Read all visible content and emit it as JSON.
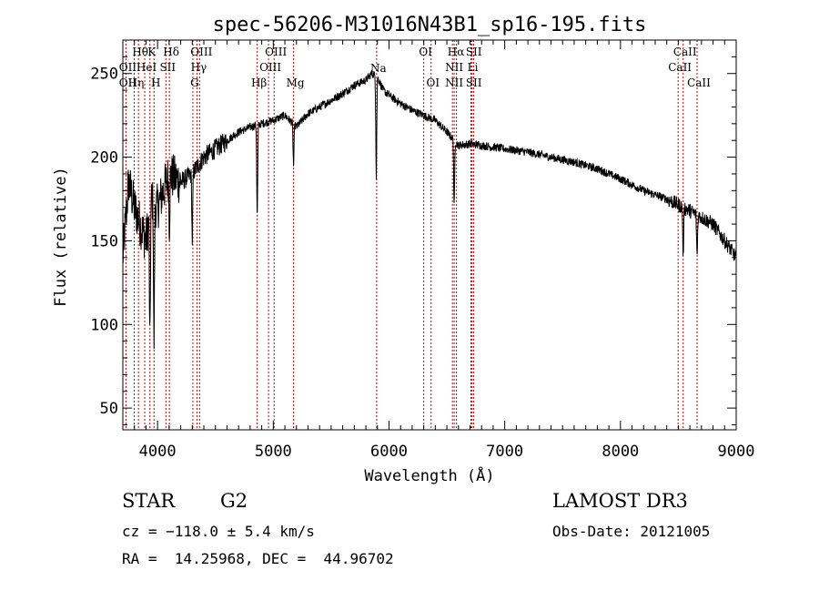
{
  "chart_data": {
    "type": "line",
    "title": "spec-56206-M31016N43B1_sp16-195.fits",
    "xlabel": "Wavelength (Å)",
    "ylabel": "Flux (relative)",
    "xlim": [
      3700,
      9000
    ],
    "ylim": [
      37,
      270
    ],
    "x_ticks": [
      4000,
      5000,
      6000,
      7000,
      8000,
      9000
    ],
    "y_ticks": [
      50,
      100,
      150,
      200,
      250
    ],
    "grid": false,
    "series": [
      {
        "name": "spectrum",
        "continuum_points": [
          [
            3700,
            140
          ],
          [
            3750,
            185
          ],
          [
            3800,
            170
          ],
          [
            3850,
            160
          ],
          [
            3900,
            150
          ],
          [
            3950,
            175
          ],
          [
            4000,
            170
          ],
          [
            4100,
            190
          ],
          [
            4200,
            185
          ],
          [
            4300,
            190
          ],
          [
            4400,
            200
          ],
          [
            4500,
            205
          ],
          [
            4600,
            210
          ],
          [
            4700,
            215
          ],
          [
            4800,
            218
          ],
          [
            4900,
            220
          ],
          [
            5000,
            222
          ],
          [
            5100,
            225
          ],
          [
            5200,
            218
          ],
          [
            5300,
            226
          ],
          [
            5400,
            230
          ],
          [
            5500,
            234
          ],
          [
            5600,
            238
          ],
          [
            5700,
            243
          ],
          [
            5800,
            246
          ],
          [
            5850,
            250
          ],
          [
            5900,
            248
          ],
          [
            5950,
            240
          ],
          [
            6000,
            237
          ],
          [
            6100,
            232
          ],
          [
            6200,
            228
          ],
          [
            6300,
            225
          ],
          [
            6400,
            222
          ],
          [
            6500,
            215
          ],
          [
            6600,
            207
          ],
          [
            6700,
            208
          ],
          [
            6800,
            207
          ],
          [
            7000,
            205
          ],
          [
            7200,
            203
          ],
          [
            7400,
            200
          ],
          [
            7600,
            197
          ],
          [
            7800,
            193
          ],
          [
            8000,
            187
          ],
          [
            8200,
            180
          ],
          [
            8400,
            175
          ],
          [
            8600,
            168
          ],
          [
            8800,
            160
          ],
          [
            9000,
            140
          ]
        ],
        "absorption_features": [
          {
            "wavelength": 3934,
            "depth": 80
          },
          {
            "wavelength": 3969,
            "depth": 85
          },
          {
            "wavelength": 4102,
            "depth": 30
          },
          {
            "wavelength": 4300,
            "depth": 40
          },
          {
            "wavelength": 4861,
            "depth": 55
          },
          {
            "wavelength": 5175,
            "depth": 25
          },
          {
            "wavelength": 5890,
            "depth": 60
          },
          {
            "wavelength": 6563,
            "depth": 40
          },
          {
            "wavelength": 8542,
            "depth": 30
          },
          {
            "wavelength": 8662,
            "depth": 25
          }
        ]
      }
    ],
    "lines": [
      {
        "wl": 3727,
        "top": "OII",
        "bottom": "OII"
      },
      {
        "wl": 3798,
        "top": "",
        "bottom": "Hη"
      },
      {
        "wl": 3835,
        "top": "Hθ",
        "bottom": ""
      },
      {
        "wl": 3889,
        "top": "HeI",
        "bottom": ""
      },
      {
        "wl": 3934,
        "top": "K",
        "bottom": "H"
      },
      {
        "wl": 3969,
        "top": "",
        "bottom": ""
      },
      {
        "wl": 4072,
        "top": "SII",
        "bottom": ""
      },
      {
        "wl": 4102,
        "top": "Hδ",
        "bottom": ""
      },
      {
        "wl": 4305,
        "top": "",
        "bottom": "G"
      },
      {
        "wl": 4340,
        "top": "Hγ",
        "bottom": ""
      },
      {
        "wl": 4363,
        "top": "OIII",
        "bottom": ""
      },
      {
        "wl": 4861,
        "top": "",
        "bottom": "Hβ"
      },
      {
        "wl": 4959,
        "top": "OIII",
        "bottom": ""
      },
      {
        "wl": 5007,
        "top": "OIII",
        "bottom": ""
      },
      {
        "wl": 5175,
        "top": "",
        "bottom": "Mg"
      },
      {
        "wl": 5893,
        "top": "",
        "bottom": "Na"
      },
      {
        "wl": 6300,
        "top": "OI",
        "bottom": ""
      },
      {
        "wl": 6364,
        "top": "",
        "bottom": "OI"
      },
      {
        "wl": 6548,
        "top": "NII",
        "bottom": "NII"
      },
      {
        "wl": 6563,
        "top": "Hα",
        "bottom": ""
      },
      {
        "wl": 6583,
        "top": "",
        "bottom": ""
      },
      {
        "wl": 6708,
        "top": "Li",
        "bottom": ""
      },
      {
        "wl": 6717,
        "top": "SII",
        "bottom": "SII"
      },
      {
        "wl": 6731,
        "top": "",
        "bottom": ""
      },
      {
        "wl": 8498,
        "top": "CaII",
        "bottom": ""
      },
      {
        "wl": 8542,
        "top": "CaII",
        "bottom": ""
      },
      {
        "wl": 8662,
        "top": "",
        "bottom": "CaII"
      }
    ],
    "line_labels_top_row": [
      "Hθ",
      "K",
      "Hδ",
      "OIII",
      "OIII",
      "OI",
      "Hα",
      "SII",
      "CaII"
    ],
    "line_labels_mid_row": [
      "OII",
      "HeI",
      "SII",
      "Hγ",
      "OIII",
      "Na",
      "NII",
      "Li",
      "CaII"
    ],
    "line_labels_low_row": [
      "OII",
      "Hη",
      "H",
      "G",
      "Hβ",
      "Mg",
      "OI",
      "NII",
      "SII",
      "CaII"
    ],
    "line_color": "#cc0000",
    "spectrum_color": "#000000"
  },
  "info": {
    "object_class": "STAR",
    "subclass": "G2",
    "survey": "LAMOST DR3",
    "redshift": "cz = −118.0 ± 5.4 km/s",
    "obs_date": "Obs-Date: 20121005",
    "coords": "RA =  14.25968, DEC =  44.96702"
  }
}
